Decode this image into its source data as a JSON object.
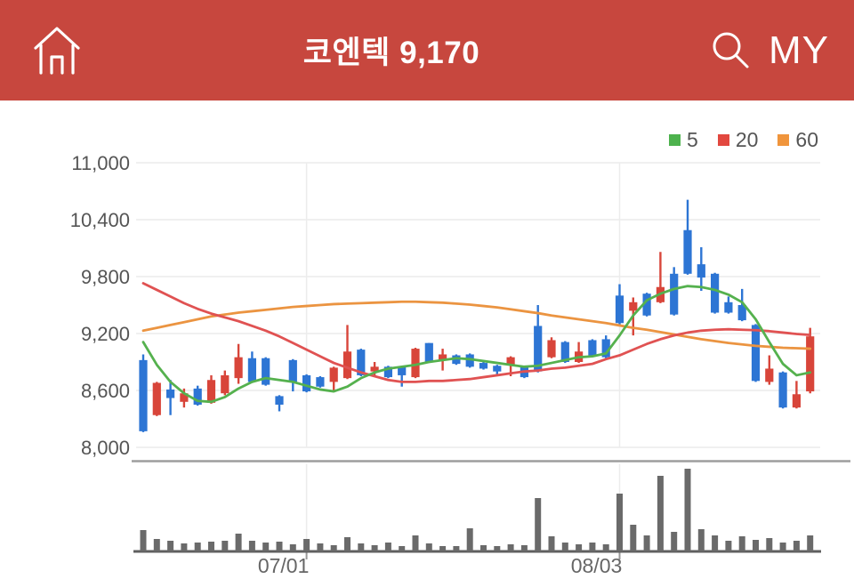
{
  "header": {
    "title": "코엔텍 9,170",
    "my_label": "MY",
    "icons": {
      "home": "home-icon",
      "search": "search-icon"
    },
    "bg_color": "#c7473e"
  },
  "legend": {
    "items": [
      {
        "label": "5",
        "color": "#4db24d"
      },
      {
        "label": "20",
        "color": "#e2483f"
      },
      {
        "label": "60",
        "color": "#f0953c"
      }
    ]
  },
  "chart_data": {
    "type": "candlestick",
    "title": "코엔텍 daily price with 5/20/60 moving averages and volume",
    "last_price": "9,170",
    "y_axis": {
      "min": 8000,
      "max": 11000,
      "ticks": [
        11000,
        10400,
        9800,
        9200,
        8600,
        8000
      ],
      "tick_labels": [
        "11,000",
        "10,400",
        "9,800",
        "9,200",
        "8,600",
        "8,000"
      ]
    },
    "x_axis": {
      "tick_indices": [
        12,
        35
      ],
      "tick_labels": [
        "07/01",
        "08/03"
      ]
    },
    "series": {
      "candles": [
        [
          8920,
          8980,
          8160,
          8170
        ],
        [
          8340,
          8690,
          8330,
          8680
        ],
        [
          8610,
          8710,
          8340,
          8520
        ],
        [
          8480,
          8620,
          8420,
          8570
        ],
        [
          8620,
          8650,
          8440,
          8450
        ],
        [
          8470,
          8760,
          8460,
          8710
        ],
        [
          8570,
          8810,
          8550,
          8760
        ],
        [
          8730,
          9090,
          8670,
          8950
        ],
        [
          8940,
          9010,
          8680,
          8690
        ],
        [
          8940,
          8950,
          8650,
          8660
        ],
        [
          8540,
          8550,
          8380,
          8450
        ],
        [
          8920,
          8930,
          8590,
          8690
        ],
        [
          8760,
          8770,
          8580,
          8590
        ],
        [
          8740,
          8750,
          8630,
          8640
        ],
        [
          8690,
          8850,
          8590,
          8840
        ],
        [
          8730,
          9290,
          8720,
          9010
        ],
        [
          9030,
          9040,
          8750,
          8760
        ],
        [
          8800,
          8900,
          8750,
          8850
        ],
        [
          8850,
          8860,
          8730,
          8740
        ],
        [
          8850,
          8860,
          8640,
          8760
        ],
        [
          8740,
          9050,
          8730,
          9040
        ],
        [
          9100,
          9100,
          8890,
          8900
        ],
        [
          8920,
          9040,
          8810,
          8980
        ],
        [
          8970,
          8980,
          8870,
          8880
        ],
        [
          8980,
          8990,
          8840,
          8850
        ],
        [
          8890,
          8900,
          8820,
          8830
        ],
        [
          8860,
          8870,
          8760,
          8800
        ],
        [
          8870,
          8960,
          8750,
          8950
        ],
        [
          8850,
          8860,
          8730,
          8740
        ],
        [
          9280,
          9500,
          8790,
          8800
        ],
        [
          8950,
          9160,
          8940,
          9130
        ],
        [
          9110,
          9120,
          8890,
          8900
        ],
        [
          8900,
          9110,
          8890,
          9010
        ],
        [
          9130,
          9140,
          8960,
          8970
        ],
        [
          9140,
          9180,
          8940,
          8950
        ],
        [
          9600,
          9720,
          9290,
          9310
        ],
        [
          9440,
          9580,
          9180,
          9530
        ],
        [
          9620,
          9630,
          9380,
          9390
        ],
        [
          9530,
          10060,
          9520,
          9690
        ],
        [
          9830,
          9900,
          9390,
          9400
        ],
        [
          10290,
          10610,
          9820,
          9830
        ],
        [
          9930,
          10110,
          9650,
          9790
        ],
        [
          9830,
          9840,
          9410,
          9420
        ],
        [
          9530,
          9590,
          9410,
          9420
        ],
        [
          9500,
          9670,
          9330,
          9340
        ],
        [
          9290,
          9300,
          8690,
          8700
        ],
        [
          8690,
          8970,
          8660,
          8830
        ],
        [
          8790,
          8800,
          8410,
          8420
        ],
        [
          8420,
          8700,
          8410,
          8560
        ],
        [
          8590,
          9260,
          8570,
          9170
        ]
      ],
      "volume": [
        24,
        14,
        12,
        9,
        10,
        11,
        12,
        20,
        12,
        10,
        11,
        8,
        14,
        9,
        7,
        16,
        9,
        7,
        10,
        6,
        18,
        9,
        6,
        6,
        26,
        7,
        6,
        8,
        7,
        60,
        17,
        10,
        8,
        10,
        8,
        65,
        30,
        18,
        85,
        22,
        93,
        25,
        18,
        12,
        17,
        13,
        15,
        10,
        12,
        18
      ],
      "ma5": [
        9110,
        8870,
        8690,
        8570,
        8490,
        8480,
        8530,
        8620,
        8690,
        8730,
        8710,
        8690,
        8650,
        8610,
        8590,
        8640,
        8730,
        8790,
        8830,
        8850,
        8870,
        8900,
        8920,
        8940,
        8930,
        8910,
        8890,
        8870,
        8850,
        8860,
        8890,
        8920,
        8950,
        8960,
        8990,
        9180,
        9390,
        9550,
        9620,
        9670,
        9700,
        9690,
        9660,
        9610,
        9530,
        9350,
        9110,
        8880,
        8760,
        8790
      ],
      "ma20": [
        9730,
        9660,
        9590,
        9520,
        9460,
        9410,
        9370,
        9330,
        9280,
        9230,
        9170,
        9100,
        9030,
        8960,
        8890,
        8840,
        8790,
        8750,
        8710,
        8690,
        8690,
        8700,
        8700,
        8710,
        8720,
        8740,
        8760,
        8780,
        8800,
        8810,
        8830,
        8840,
        8860,
        8880,
        8930,
        8970,
        9030,
        9090,
        9140,
        9180,
        9210,
        9230,
        9240,
        9245,
        9240,
        9235,
        9225,
        9210,
        9195,
        9185
      ],
      "ma60": [
        9230,
        9260,
        9290,
        9320,
        9350,
        9380,
        9400,
        9420,
        9435,
        9450,
        9465,
        9480,
        9490,
        9500,
        9510,
        9515,
        9520,
        9525,
        9530,
        9535,
        9535,
        9530,
        9525,
        9515,
        9505,
        9490,
        9475,
        9455,
        9435,
        9415,
        9390,
        9370,
        9350,
        9330,
        9310,
        9285,
        9260,
        9240,
        9215,
        9190,
        9165,
        9140,
        9120,
        9100,
        9085,
        9070,
        9060,
        9050,
        9045,
        9040
      ]
    },
    "colors": {
      "up": "#d8453a",
      "down": "#2d75d4",
      "ma5": "#55b14e",
      "ma20": "#e05252",
      "ma60": "#eb9441",
      "volume": "#6a6a6a",
      "grid": "#ececec",
      "axis_text": "#555555",
      "x_label": "#666666",
      "separator": "#9e9e9e",
      "baseline": "#5f5f5f"
    },
    "legend_position": "top-right",
    "grid": true
  }
}
